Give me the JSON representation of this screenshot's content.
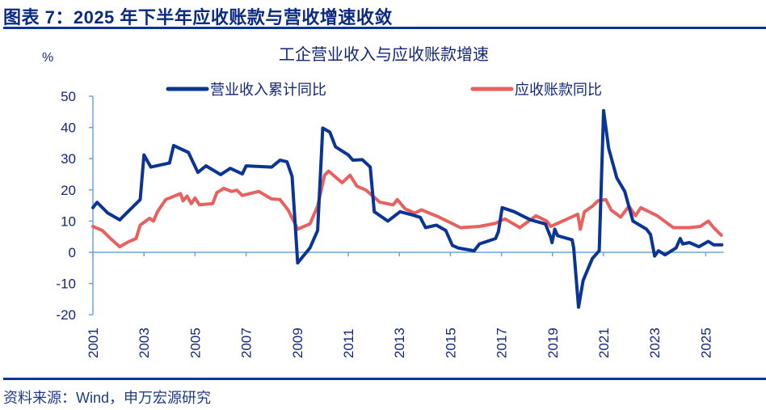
{
  "header": {
    "title": "图表 7：2025 年下半年应收账款与营收增速收敛"
  },
  "footer": {
    "source": "资料来源：Wind，申万宏源研究"
  },
  "chart_data": {
    "type": "line",
    "title": "工企营业收入与应收账款增速",
    "ylabel": "%",
    "xlabel": "",
    "ylim": [
      -20,
      50
    ],
    "yticks": [
      50,
      40,
      30,
      20,
      10,
      0,
      -10,
      -20
    ],
    "xlim": [
      2001,
      2025.7
    ],
    "xticks": [
      "2001",
      "2003",
      "2005",
      "2007",
      "2009",
      "2011",
      "2013",
      "2015",
      "2017",
      "2019",
      "2021",
      "2023",
      "2025"
    ],
    "grid": false,
    "legend": "top",
    "series": [
      {
        "name": "营业收入累计同比",
        "color": "#0A3594",
        "points": [
          [
            2001.0,
            14.3
          ],
          [
            2001.16,
            16
          ],
          [
            2001.58,
            12.6
          ],
          [
            2002.05,
            10.4
          ],
          [
            2002.37,
            13
          ],
          [
            2002.85,
            16.9
          ],
          [
            2003.0,
            31.2
          ],
          [
            2003.27,
            27.3
          ],
          [
            2004.0,
            28.6
          ],
          [
            2004.16,
            34.2
          ],
          [
            2004.74,
            32
          ],
          [
            2005.11,
            25.6
          ],
          [
            2005.43,
            27.7
          ],
          [
            2006.0,
            24.9
          ],
          [
            2006.38,
            26.9
          ],
          [
            2006.85,
            25.1
          ],
          [
            2007.0,
            27.7
          ],
          [
            2008.0,
            27.3
          ],
          [
            2008.33,
            29.5
          ],
          [
            2008.6,
            29
          ],
          [
            2008.8,
            24.3
          ],
          [
            2009.02,
            -3.4
          ],
          [
            2009.5,
            1.4
          ],
          [
            2009.8,
            7
          ],
          [
            2010.0,
            39.8
          ],
          [
            2010.28,
            38.5
          ],
          [
            2010.5,
            33.8
          ],
          [
            2011.0,
            31.2
          ],
          [
            2011.18,
            29.5
          ],
          [
            2011.55,
            29.7
          ],
          [
            2011.86,
            27.3
          ],
          [
            2012.02,
            13
          ],
          [
            2012.55,
            10
          ],
          [
            2013.03,
            13
          ],
          [
            2013.5,
            12
          ],
          [
            2013.82,
            11.2
          ],
          [
            2014.03,
            7.9
          ],
          [
            2014.45,
            8.7
          ],
          [
            2014.82,
            7
          ],
          [
            2015.08,
            2.2
          ],
          [
            2015.3,
            1.4
          ],
          [
            2015.93,
            0.5
          ],
          [
            2016.14,
            2.7
          ],
          [
            2016.77,
            4.4
          ],
          [
            2016.88,
            6.6
          ],
          [
            2017.03,
            14.3
          ],
          [
            2017.5,
            13
          ],
          [
            2018.14,
            10.4
          ],
          [
            2018.72,
            9.1
          ],
          [
            2018.93,
            4.8
          ],
          [
            2018.98,
            3.1
          ],
          [
            2019.09,
            7.4
          ],
          [
            2019.2,
            5.3
          ],
          [
            2019.77,
            4
          ],
          [
            2019.83,
            1.4
          ],
          [
            2020.02,
            -17.6
          ],
          [
            2020.2,
            -9
          ],
          [
            2020.56,
            -2
          ],
          [
            2020.83,
            0.5
          ],
          [
            2021.0,
            45.4
          ],
          [
            2021.2,
            33.3
          ],
          [
            2021.52,
            23.8
          ],
          [
            2021.83,
            19.5
          ],
          [
            2022.15,
            10
          ],
          [
            2022.68,
            7.4
          ],
          [
            2022.84,
            5.7
          ],
          [
            2023.0,
            -1.2
          ],
          [
            2023.15,
            0.5
          ],
          [
            2023.41,
            -0.8
          ],
          [
            2023.84,
            1.4
          ],
          [
            2024.0,
            4.4
          ],
          [
            2024.1,
            2.7
          ],
          [
            2024.36,
            3.1
          ],
          [
            2024.73,
            1.8
          ],
          [
            2025.1,
            3.5
          ],
          [
            2025.31,
            2.4
          ],
          [
            2025.63,
            2.4
          ]
        ]
      },
      {
        "name": "应收账款同比",
        "color": "#E8615F",
        "points": [
          [
            2001.0,
            8.3
          ],
          [
            2001.37,
            7
          ],
          [
            2001.69,
            4.4
          ],
          [
            2002.05,
            1.8
          ],
          [
            2002.37,
            3.3
          ],
          [
            2002.69,
            4.4
          ],
          [
            2002.85,
            8.7
          ],
          [
            2003.22,
            10.9
          ],
          [
            2003.37,
            10
          ],
          [
            2003.53,
            13
          ],
          [
            2003.85,
            16.9
          ],
          [
            2004.43,
            18.8
          ],
          [
            2004.53,
            16.5
          ],
          [
            2004.69,
            18
          ],
          [
            2004.85,
            15.6
          ],
          [
            2005.0,
            17.4
          ],
          [
            2005.17,
            15.2
          ],
          [
            2005.69,
            15.6
          ],
          [
            2005.85,
            19.1
          ],
          [
            2006.12,
            20.5
          ],
          [
            2006.43,
            19.5
          ],
          [
            2006.64,
            19.9
          ],
          [
            2006.85,
            18.2
          ],
          [
            2007.49,
            19.5
          ],
          [
            2008.0,
            17.1
          ],
          [
            2008.33,
            16.9
          ],
          [
            2008.65,
            13.5
          ],
          [
            2009.02,
            7.4
          ],
          [
            2009.5,
            9.1
          ],
          [
            2009.8,
            14.8
          ],
          [
            2010.07,
            24.7
          ],
          [
            2010.23,
            26
          ],
          [
            2010.76,
            22.3
          ],
          [
            2011.07,
            24.7
          ],
          [
            2011.34,
            21.2
          ],
          [
            2011.7,
            19.9
          ],
          [
            2012.23,
            16.1
          ],
          [
            2012.76,
            15.2
          ],
          [
            2012.92,
            16.9
          ],
          [
            2013.23,
            13.9
          ],
          [
            2013.6,
            12.6
          ],
          [
            2013.87,
            13.6
          ],
          [
            2014.55,
            11.3
          ],
          [
            2015.4,
            7.9
          ],
          [
            2016.14,
            8.3
          ],
          [
            2016.77,
            9.3
          ],
          [
            2017.14,
            10.7
          ],
          [
            2017.72,
            7.9
          ],
          [
            2018.35,
            11.7
          ],
          [
            2018.78,
            10
          ],
          [
            2018.93,
            8.3
          ],
          [
            2019.99,
            12.2
          ],
          [
            2020.09,
            7.4
          ],
          [
            2020.25,
            13
          ],
          [
            2020.57,
            14.8
          ],
          [
            2020.78,
            16.5
          ],
          [
            2021.09,
            16.9
          ],
          [
            2021.3,
            13.5
          ],
          [
            2021.67,
            11.3
          ],
          [
            2021.99,
            14.8
          ],
          [
            2022.25,
            11.7
          ],
          [
            2022.46,
            14.3
          ],
          [
            2023.1,
            11.7
          ],
          [
            2023.73,
            7.9
          ],
          [
            2024.36,
            7.9
          ],
          [
            2024.79,
            8.3
          ],
          [
            2025.1,
            10
          ],
          [
            2025.31,
            7.9
          ],
          [
            2025.61,
            5.5
          ]
        ]
      }
    ]
  }
}
